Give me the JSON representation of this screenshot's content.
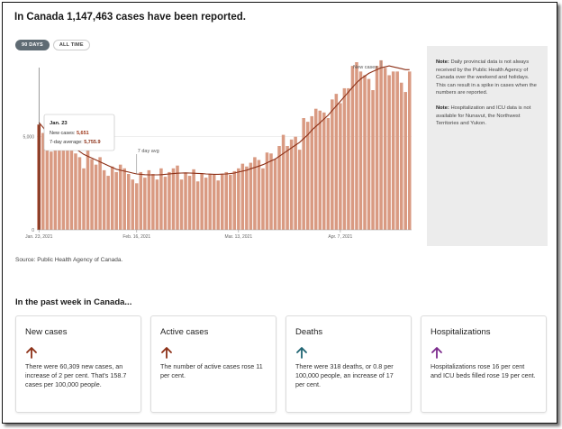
{
  "headline": "In Canada 1,147,463 cases have been reported.",
  "toggle": {
    "active": "90 DAYS",
    "inactive": "ALL TIME"
  },
  "chart_data": {
    "type": "bar",
    "bar_color": "#d99a82",
    "highlight_color": "#a03a1d",
    "line_color": "#8c2f16",
    "y_ticks": [
      0,
      5000
    ],
    "y_tick_labels": [
      "0",
      "5,000"
    ],
    "ylim": [
      0,
      9000
    ],
    "x_tick_labels": [
      "Jan. 23, 2021",
      "Feb. 16, 2021",
      "Mar. 13, 2021",
      "Apr. 7, 2021"
    ],
    "x_tick_indices": [
      0,
      24,
      49,
      74
    ],
    "values": [
      5651,
      5200,
      4700,
      4200,
      4900,
      4400,
      4500,
      4700,
      4550,
      4100,
      3900,
      3300,
      4500,
      3800,
      3500,
      3900,
      3200,
      2900,
      3400,
      3100,
      3500,
      3300,
      3000,
      2700,
      2500,
      3100,
      2800,
      3200,
      3000,
      2700,
      3300,
      2850,
      3100,
      3300,
      3450,
      2700,
      3050,
      2900,
      3250,
      2600,
      3000,
      2800,
      3000,
      2950,
      2650,
      3000,
      3100,
      2950,
      3150,
      3300,
      3550,
      3400,
      3600,
      3900,
      3750,
      3300,
      4150,
      4100,
      3800,
      4500,
      5100,
      4500,
      4850,
      5000,
      4300,
      6000,
      5800,
      6100,
      6500,
      6400,
      6300,
      6000,
      7000,
      7300,
      6800,
      7600,
      7600,
      8800,
      9000,
      8500,
      8300,
      8100,
      7500,
      8800,
      9100,
      8700,
      8300,
      8500,
      8500,
      7900,
      7400,
      8500
    ],
    "avg": [
      5756,
      5500,
      5200,
      4950,
      4800,
      4650,
      4550,
      4500,
      4450,
      4350,
      4200,
      4050,
      3950,
      3850,
      3750,
      3650,
      3550,
      3450,
      3350,
      3250,
      3200,
      3150,
      3100,
      3050,
      3000,
      2980,
      2960,
      2950,
      2950,
      2950,
      2960,
      2980,
      3000,
      3020,
      3040,
      3050,
      3060,
      3050,
      3040,
      3030,
      3020,
      3000,
      2990,
      2980,
      2980,
      2990,
      3000,
      3020,
      3050,
      3100,
      3150,
      3200,
      3280,
      3350,
      3420,
      3500,
      3600,
      3700,
      3800,
      3950,
      4100,
      4250,
      4400,
      4550,
      4700,
      4900,
      5100,
      5350,
      5550,
      5750,
      5950,
      6150,
      6400,
      6650,
      6900,
      7150,
      7400,
      7650,
      7900,
      8100,
      8250,
      8400,
      8500,
      8600,
      8700,
      8750,
      8800,
      8750,
      8700,
      8650,
      8600,
      8600
    ],
    "annotations": {
      "new_cases": "New cases",
      "avg": "7 day avg"
    },
    "tooltip": {
      "date": "Jan. 23",
      "new_cases_label": "New cases:",
      "new_cases_value": "5,651",
      "avg_label": "7-day average:",
      "avg_value": "5,755.9"
    }
  },
  "source": "Source: Public Health Agency of Canada.",
  "notes": [
    {
      "label": "Note:",
      "text": "Daily provincial data is not always received by the Public Health Agency of Canada over the weekend and holidays. This can result in a spike in cases when the numbers are reported."
    },
    {
      "label": "Note:",
      "text": "Hospitalization and ICU data is not available for Nunavut, the Northwest Territories and Yukon."
    }
  ],
  "section_title": "In the past week in Canada...",
  "cards": [
    {
      "title": "New cases",
      "arrow": "up",
      "arrow_color": "#8c2f16",
      "desc": "There were 60,309 new cases, an increase of 2 per cent. That's 158.7 cases per 100,000 people."
    },
    {
      "title": "Active cases",
      "arrow": "up",
      "arrow_color": "#8c2f16",
      "desc": "The number of active cases rose 11 per cent."
    },
    {
      "title": "Deaths",
      "arrow": "up",
      "arrow_color": "#1f6472",
      "desc": "There were 318 deaths, or 0.8 per 100,000 people, an increase of 17 per cent."
    },
    {
      "title": "Hospitalizations",
      "arrow": "up",
      "arrow_color": "#7b2a8c",
      "desc": "Hospitalizations rose 16 per cent and ICU beds filled rose 19 per cent."
    }
  ]
}
